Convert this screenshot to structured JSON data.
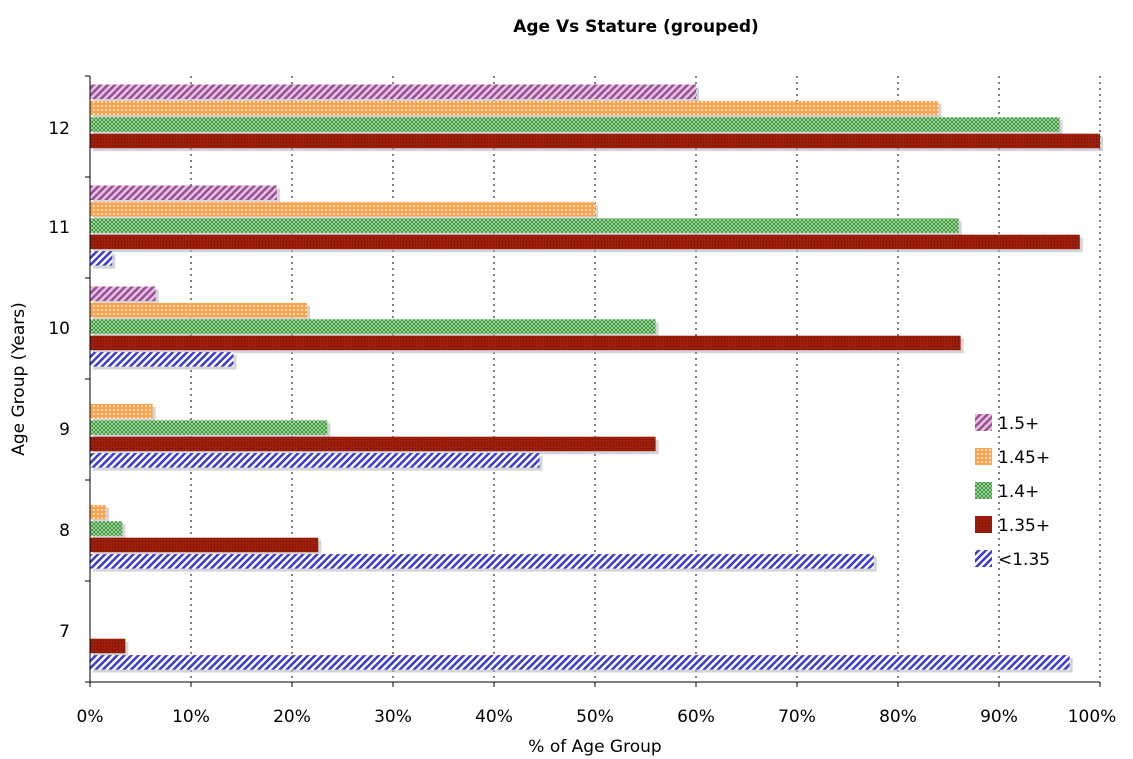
{
  "chart_data": {
    "type": "bar",
    "orientation": "horizontal",
    "title": "Age Vs Stature (grouped)",
    "xlabel": "% of Age Group",
    "ylabel": "Age Group (Years)",
    "xlim": [
      0,
      100
    ],
    "x_ticks": [
      "0%",
      "10%",
      "20%",
      "30%",
      "40%",
      "50%",
      "60%",
      "70%",
      "80%",
      "90%",
      "100%"
    ],
    "categories": [
      "12",
      "11",
      "10",
      "9",
      "8",
      "7"
    ],
    "grid": "vertical dotted",
    "legend_position": "right",
    "series": [
      {
        "name": "1.5+",
        "color": "#9b4f96",
        "pattern": "diagonal-stripes",
        "values": [
          60,
          18.5,
          6.5,
          0,
          0,
          0
        ]
      },
      {
        "name": "1.45+",
        "color": "#ff7f1e",
        "pattern": "dots",
        "values": [
          84,
          50,
          21.5,
          6.2,
          1.6,
          0
        ]
      },
      {
        "name": "1.4+",
        "color": "#2e8b2e",
        "pattern": "crosshatch",
        "values": [
          96,
          86,
          56,
          23.5,
          3.2,
          0
        ]
      },
      {
        "name": "1.35+",
        "color": "#9b1c0a",
        "pattern": "dense",
        "values": [
          100,
          98,
          86.2,
          56,
          22.6,
          3.5
        ]
      },
      {
        "name": "<1.35",
        "color": "#4040cc",
        "pattern": "diagonal-stripes",
        "values": [
          0,
          2.2,
          14.2,
          44.5,
          77.6,
          97
        ]
      }
    ]
  }
}
